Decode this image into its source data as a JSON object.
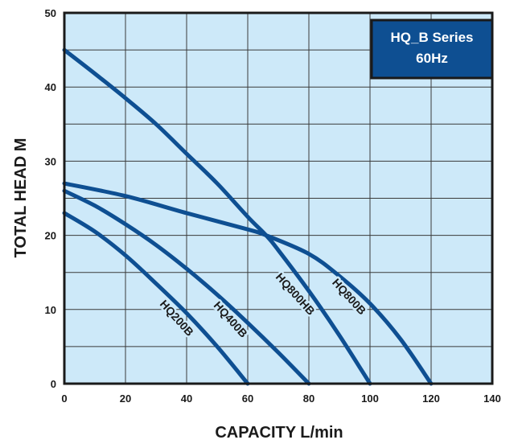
{
  "chart_data": {
    "type": "line",
    "title": "",
    "badge": {
      "line1": "HQ_B Series",
      "line2": "60Hz"
    },
    "xlabel": "CAPACITY L/min",
    "ylabel": "TOTAL HEAD M",
    "xlim": [
      0,
      140
    ],
    "ylim": [
      0,
      50
    ],
    "xticks": [
      "0",
      "20",
      "40",
      "60",
      "80",
      "100",
      "120",
      "140"
    ],
    "yticks": [
      "0",
      "10",
      "20",
      "30",
      "40",
      "50"
    ],
    "grid": true,
    "colors": {
      "plot_bg": "#cde9f9",
      "curve": "#0e4f92",
      "badge_bg": "#0e4f92",
      "frame": "#1a1a1a",
      "grid": "#3a3a3a"
    },
    "series": [
      {
        "name": "HQ200B",
        "x": [
          0,
          10,
          20,
          30,
          40,
          50,
          60
        ],
        "y": [
          23,
          20.5,
          17.3,
          13.5,
          9.5,
          5,
          0
        ]
      },
      {
        "name": "HQ400B",
        "x": [
          0,
          10,
          20,
          30,
          40,
          50,
          60,
          70,
          80
        ],
        "y": [
          26,
          24,
          21.5,
          18.7,
          15.5,
          12,
          8.2,
          4.2,
          0
        ]
      },
      {
        "name": "HQ800HB",
        "x": [
          0,
          10,
          20,
          30,
          40,
          50,
          60,
          66,
          70,
          80,
          90,
          100
        ],
        "y": [
          45,
          41.8,
          38.5,
          35,
          31,
          27,
          22.5,
          20,
          18,
          12.5,
          6.5,
          0
        ]
      },
      {
        "name": "HQ800B",
        "x": [
          0,
          20,
          40,
          60,
          66,
          80,
          90,
          100,
          110,
          120
        ],
        "y": [
          27,
          25.3,
          23,
          20.8,
          20,
          17.5,
          14.5,
          10.8,
          6,
          0
        ]
      }
    ]
  }
}
